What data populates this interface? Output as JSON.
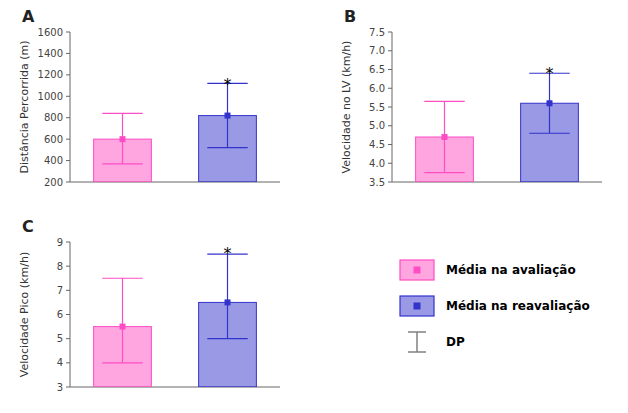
{
  "chart_data": [
    {
      "type": "bar",
      "title": "A",
      "y_label": "Distância Percorrida (m)",
      "categories": [
        null,
        null
      ],
      "ylim": [
        200,
        1600
      ],
      "yticks": [
        200,
        400,
        600,
        800,
        1000,
        1200,
        1400,
        1600
      ],
      "series": [
        {
          "name": "Média na avaliação",
          "color": "#FF4DC4",
          "values": [
            600,
            null
          ],
          "error_low": [
            370,
            null
          ],
          "error_high": [
            840,
            null
          ]
        },
        {
          "name": "Média na reavaliação",
          "color": "#3333CC",
          "values": [
            null,
            820
          ],
          "error_low": [
            null,
            520
          ],
          "error_high": [
            null,
            1120
          ]
        }
      ],
      "error_name": "DP",
      "annotations": [
        {
          "text": "*",
          "x": 1,
          "y": 1140
        }
      ]
    },
    {
      "type": "bar",
      "title": "B",
      "y_label": "Velocidade no LV (km/h)",
      "categories": [
        null,
        null
      ],
      "ylim": [
        3.5,
        7.5
      ],
      "yticks": [
        3.5,
        {
          "value": 4.0,
          "label": "4.0"
        },
        4.5,
        {
          "value": 5.0,
          "label": "5.0"
        },
        5.5,
        {
          "value": 6.0,
          "label": "6.0"
        },
        6.5,
        {
          "value": 7.0,
          "label": "7.0"
        },
        7.5
      ],
      "series": [
        {
          "color": "#FF4DC4",
          "values": [
            4.7,
            null
          ],
          "error_low": [
            3.75,
            null
          ],
          "error_high": [
            5.65,
            null
          ]
        },
        {
          "color": "#3333CC",
          "values": [
            null,
            5.6
          ],
          "error_low": [
            null,
            4.8
          ],
          "error_high": [
            null,
            6.4
          ]
        }
      ],
      "annotations": [
        {
          "text": "*",
          "x": 1,
          "y": 6.5
        }
      ]
    },
    {
      "type": "bar",
      "title": "C",
      "y_label": "Velocidade Pico (km/h)",
      "categories": [
        null,
        null
      ],
      "ylim": [
        3,
        9
      ],
      "yticks": [
        3,
        4,
        5,
        6,
        7,
        8,
        9
      ],
      "series": [
        {
          "color": "#FF4DC4",
          "values": [
            5.5,
            null
          ],
          "error_low": [
            4.0,
            null
          ],
          "error_high": [
            7.5,
            null
          ]
        },
        {
          "color": "#3333CC",
          "values": [
            null,
            6.5
          ],
          "error_low": [
            null,
            5.0
          ],
          "error_high": [
            null,
            8.5
          ]
        }
      ],
      "annotations": [
        {
          "text": "*",
          "x": 1,
          "y": 8.65
        }
      ]
    }
  ]
}
